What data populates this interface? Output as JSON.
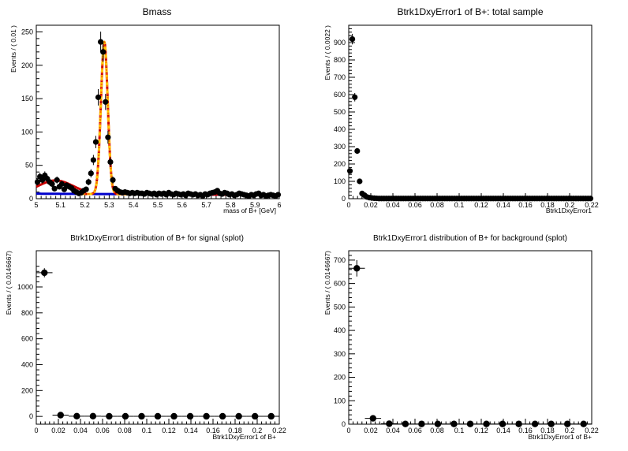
{
  "chart_data": [
    {
      "type": "scatter",
      "title": "Bmass",
      "xlabel": "mass of B+ [GeV]",
      "ylabel": "Events / ( 0.01 )",
      "xlim": [
        5.0,
        6.0
      ],
      "ylim": [
        0,
        260
      ],
      "xticks": [
        5.0,
        5.1,
        5.2,
        5.3,
        5.4,
        5.5,
        5.6,
        5.7,
        5.8,
        5.9,
        6.0
      ],
      "xtick_labels": [
        "5",
        "5.1",
        "5.2",
        "5.3",
        "5.4",
        "5.5",
        "5.6",
        "5.7",
        "5.8",
        "5.9",
        "6"
      ],
      "yticks": [
        0,
        50,
        100,
        150,
        200,
        250
      ],
      "ytick_labels": [
        "0",
        "50",
        "100",
        "150",
        "200",
        "250"
      ],
      "grid": false,
      "x": [
        5.005,
        5.015,
        5.025,
        5.035,
        5.045,
        5.055,
        5.065,
        5.075,
        5.085,
        5.095,
        5.105,
        5.115,
        5.125,
        5.135,
        5.145,
        5.155,
        5.165,
        5.175,
        5.185,
        5.195,
        5.205,
        5.215,
        5.225,
        5.235,
        5.245,
        5.255,
        5.265,
        5.275,
        5.285,
        5.295,
        5.305,
        5.315,
        5.325,
        5.335,
        5.345,
        5.355,
        5.365,
        5.375,
        5.385,
        5.395,
        5.405,
        5.415,
        5.425,
        5.435,
        5.445,
        5.455,
        5.465,
        5.475,
        5.485,
        5.495,
        5.505,
        5.515,
        5.525,
        5.535,
        5.545,
        5.555,
        5.565,
        5.575,
        5.585,
        5.595,
        5.605,
        5.615,
        5.625,
        5.635,
        5.645,
        5.655,
        5.665,
        5.675,
        5.685,
        5.695,
        5.705,
        5.715,
        5.725,
        5.735,
        5.745,
        5.755,
        5.765,
        5.775,
        5.785,
        5.795,
        5.805,
        5.815,
        5.825,
        5.835,
        5.845,
        5.855,
        5.865,
        5.875,
        5.885,
        5.895,
        5.905,
        5.915,
        5.925,
        5.935,
        5.945,
        5.955,
        5.965,
        5.975,
        5.985,
        5.995
      ],
      "values": [
        25,
        33,
        28,
        35,
        30,
        25,
        22,
        15,
        28,
        18,
        22,
        14,
        20,
        18,
        16,
        12,
        10,
        8,
        9,
        12,
        14,
        25,
        38,
        58,
        85,
        152,
        235,
        220,
        145,
        92,
        55,
        28,
        15,
        12,
        10,
        9,
        10,
        9,
        8,
        9,
        8,
        9,
        8,
        8,
        7,
        9,
        8,
        7,
        8,
        6,
        8,
        7,
        8,
        6,
        9,
        7,
        6,
        8,
        7,
        6,
        7,
        5,
        8,
        7,
        6,
        7,
        5,
        6,
        4,
        7,
        6,
        8,
        9,
        10,
        12,
        8,
        7,
        9,
        8,
        6,
        7,
        5,
        6,
        8,
        7,
        6,
        5,
        4,
        6,
        5,
        7,
        8,
        5,
        6,
        4,
        5,
        6,
        5,
        4,
        6
      ],
      "series": [
        {
          "name": "",
          "color": "#cc0000",
          "style": "total fit (red solid)"
        },
        {
          "name": "",
          "color": "#ffcc00",
          "style": "signal component (yellow dashed)"
        },
        {
          "name": "",
          "color": "#ff6600",
          "style": "orange dotted"
        },
        {
          "name": "",
          "color": "#0000cc",
          "style": "background (blue)"
        }
      ],
      "fit": {
        "mean": 5.28,
        "sigma": 0.014,
        "signal_amplitude": 228,
        "bg_level_start": 7.5,
        "bg_level_end": 5.5,
        "left_bump_amplitude": 20,
        "left_bump_center": 5.08,
        "left_bump_width": 0.07
      }
    },
    {
      "type": "scatter",
      "title": "Btrk1DxyError1 of B+: total sample",
      "xlabel": "Btrk1DxyError1",
      "ylabel": "Events / ( 0.0022 )",
      "xlim": [
        0,
        0.22
      ],
      "ylim": [
        0,
        1000
      ],
      "xticks": [
        0,
        0.02,
        0.04,
        0.06,
        0.08,
        0.1,
        0.12,
        0.14,
        0.16,
        0.18,
        0.2,
        0.22
      ],
      "xtick_labels": [
        "0",
        "0.02",
        "0.04",
        "0.06",
        "0.08",
        "0.1",
        "0.12",
        "0.14",
        "0.16",
        "0.18",
        "0.2",
        "0.22"
      ],
      "yticks": [
        0,
        100,
        200,
        300,
        400,
        500,
        600,
        700,
        800,
        900
      ],
      "ytick_labels": [
        "0",
        "100",
        "200",
        "300",
        "400",
        "500",
        "600",
        "700",
        "800",
        "900"
      ],
      "grid": false,
      "x_first": 0.0011,
      "bin_width": 0.0022,
      "values_head": [
        160,
        920,
        585,
        275,
        100,
        30,
        20,
        10,
        6,
        4,
        3,
        2
      ],
      "values_tail_level": 1,
      "n_bins": 100
    },
    {
      "type": "scatter",
      "title": "Btrk1DxyError1 distribution of B+ for signal (splot)",
      "xlabel": "Btrk1DxyError1 of B+",
      "ylabel": "Events / ( 0.0146667)",
      "xlim": [
        0,
        0.22
      ],
      "ylim": [
        -60,
        1280
      ],
      "xticks": [
        0,
        0.02,
        0.04,
        0.06,
        0.08,
        0.1,
        0.12,
        0.14,
        0.16,
        0.18,
        0.2,
        0.22
      ],
      "xtick_labels": [
        "0",
        "0.02",
        "0.04",
        "0.06",
        "0.08",
        "0.1",
        "0.12",
        "0.14",
        "0.16",
        "0.18",
        "0.2",
        "0.22"
      ],
      "yticks": [
        0,
        200,
        400,
        600,
        800,
        1000
      ],
      "ytick_labels": [
        "0",
        "200",
        "400",
        "600",
        "800",
        "1000"
      ],
      "grid": false,
      "bin_width": 0.0146667,
      "values": [
        1110,
        10,
        2,
        2,
        1,
        1,
        1,
        1,
        1,
        1,
        1,
        1,
        1,
        1,
        1
      ],
      "errors": [
        35,
        8,
        3,
        3,
        2,
        2,
        2,
        2,
        2,
        2,
        2,
        2,
        2,
        2,
        2
      ]
    },
    {
      "type": "scatter",
      "title": "Btrk1DxyError1 distribution of B+ for background (splot)",
      "xlabel": "Btrk1DxyError1 of B+",
      "ylabel": "Events / ( 0.0146667)",
      "xlim": [
        0,
        0.22
      ],
      "ylim": [
        0,
        740
      ],
      "xticks": [
        0,
        0.02,
        0.04,
        0.06,
        0.08,
        0.1,
        0.12,
        0.14,
        0.16,
        0.18,
        0.2,
        0.22
      ],
      "xtick_labels": [
        "0",
        "0.02",
        "0.04",
        "0.06",
        "0.08",
        "0.1",
        "0.12",
        "0.14",
        "0.16",
        "0.18",
        "0.2",
        "0.22"
      ],
      "yticks": [
        0,
        100,
        200,
        300,
        400,
        500,
        600,
        700
      ],
      "ytick_labels": [
        "0",
        "100",
        "200",
        "300",
        "400",
        "500",
        "600",
        "700"
      ],
      "grid": false,
      "bin_width": 0.0146667,
      "values": [
        665,
        25,
        2,
        1,
        1,
        1,
        1,
        1,
        1,
        1,
        1,
        1,
        1,
        1,
        1
      ],
      "errors": [
        35,
        8,
        3,
        3,
        2,
        2,
        2,
        2,
        2,
        2,
        2,
        2,
        2,
        2,
        2
      ]
    }
  ]
}
